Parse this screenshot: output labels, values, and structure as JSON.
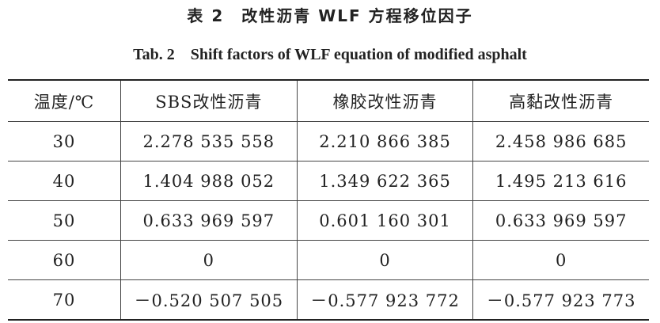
{
  "header": {
    "title_cn": "表 2　改性沥青 WLF 方程移位因子",
    "title_en": "Tab. 2　Shift factors of WLF equation of modified asphalt"
  },
  "table": {
    "columns": [
      "温度/℃",
      "SBS改性沥青",
      "橡胶改性沥青",
      "高黏改性沥青"
    ],
    "rows": [
      [
        "30",
        "2.278 535 558",
        "2.210 866 385",
        "2.458 986 685"
      ],
      [
        "40",
        "1.404 988 052",
        "1.349 622 365",
        "1.495 213 616"
      ],
      [
        "50",
        "0.633 969 597",
        "0.601 160 301",
        "0.633 969 597"
      ],
      [
        "60",
        "0",
        "0",
        "0"
      ],
      [
        "70",
        "－0.520 507 505",
        "－0.577 923 772",
        "－0.577 923 773"
      ]
    ]
  }
}
